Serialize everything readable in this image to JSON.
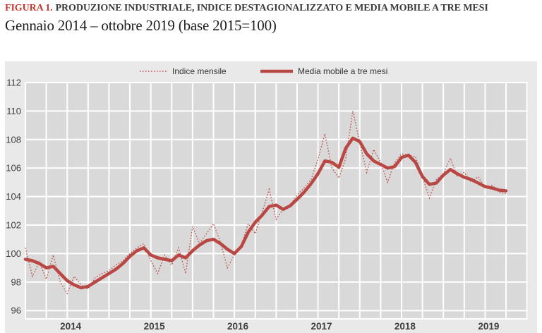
{
  "header": {
    "figure_label": "FIGURA 1.",
    "title": "PRODUZIONE INDUSTRIALE, INDICE DESTAGIONALIZZATO E MEDIA MOBILE A TRE MESI",
    "subtitle": "Gennaio 2014 – ottobre 2019 (base 2015=100)"
  },
  "colors": {
    "figure_label_red": "#c8372d",
    "title_dark": "#3a3a3a",
    "monthly_line": "#c0524d",
    "moving_avg_line": "#b94743",
    "chart_margin_bg": "#e9e9e9",
    "plot_bg": "#d9d9d9",
    "gridline": "#ffffff",
    "axis_text": "#3f3f3f"
  },
  "chart_data": {
    "type": "line",
    "title": "FIGURA 1. PRODUZIONE INDUSTRIALE, INDICE DESTAGIONALIZZATO E MEDIA MOBILE A TRE MESI",
    "subtitle": "Gennaio 2014 – ottobre 2019 (base 2015=100)",
    "xlabel": "",
    "ylabel": "",
    "ylim": [
      95.4,
      112
    ],
    "y_ticks": [
      96,
      98,
      100,
      102,
      104,
      106,
      108,
      110,
      112
    ],
    "year_labels": [
      "2014",
      "2015",
      "2016",
      "2017",
      "2018",
      "2019"
    ],
    "grid": "white gridlines on gray background; vertical lines quarterly, horizontal every 2 units",
    "legend_position": "top-center",
    "months": [
      "2014-01",
      "2014-02",
      "2014-03",
      "2014-04",
      "2014-05",
      "2014-06",
      "2014-07",
      "2014-08",
      "2014-09",
      "2014-10",
      "2014-11",
      "2014-12",
      "2015-01",
      "2015-02",
      "2015-03",
      "2015-04",
      "2015-05",
      "2015-06",
      "2015-07",
      "2015-08",
      "2015-09",
      "2015-10",
      "2015-11",
      "2015-12",
      "2016-01",
      "2016-02",
      "2016-03",
      "2016-04",
      "2016-05",
      "2016-06",
      "2016-07",
      "2016-08",
      "2016-09",
      "2016-10",
      "2016-11",
      "2016-12",
      "2017-01",
      "2017-02",
      "2017-03",
      "2017-04",
      "2017-05",
      "2017-06",
      "2017-07",
      "2017-08",
      "2017-09",
      "2017-10",
      "2017-11",
      "2017-12",
      "2018-01",
      "2018-02",
      "2018-03",
      "2018-04",
      "2018-05",
      "2018-06",
      "2018-07",
      "2018-08",
      "2018-09",
      "2018-10",
      "2018-11",
      "2018-12",
      "2019-01",
      "2019-02",
      "2019-03",
      "2019-04",
      "2019-05",
      "2019-06",
      "2019-07",
      "2019-08",
      "2019-09",
      "2019-10"
    ],
    "series": [
      {
        "name": "Indice mensile",
        "style": "dotted",
        "values": [
          100.4,
          98.4,
          99.4,
          98.2,
          99.9,
          98.0,
          97.2,
          98.4,
          97.8,
          97.5,
          98.3,
          98.6,
          98.8,
          99.2,
          99.5,
          100.0,
          100.4,
          100.7,
          99.5,
          98.6,
          99.9,
          99.2,
          100.4,
          98.6,
          101.9,
          100.7,
          101.4,
          102.1,
          100.8,
          99.0,
          99.9,
          100.6,
          102.1,
          101.4,
          102.9,
          104.5,
          102.4,
          103.1,
          103.4,
          104.1,
          104.6,
          105.2,
          106.6,
          108.4,
          106.0,
          105.3,
          106.7,
          110.0,
          107.8,
          105.7,
          107.3,
          106.4,
          105.0,
          106.4,
          107.0,
          106.9,
          106.8,
          105.4,
          103.9,
          105.2,
          105.6,
          106.7,
          105.4,
          105.7,
          105.0,
          105.4,
          104.6,
          104.8,
          104.3,
          104.2
        ]
      },
      {
        "name": "Media mobile a tre mesi",
        "style": "solid-thick",
        "values": [
          99.6,
          99.5,
          99.3,
          99.0,
          99.1,
          98.6,
          98.1,
          97.8,
          97.6,
          97.7,
          98.0,
          98.3,
          98.6,
          98.9,
          99.3,
          99.8,
          100.2,
          100.4,
          99.9,
          99.7,
          99.6,
          99.5,
          99.9,
          99.7,
          100.2,
          100.6,
          100.9,
          101.0,
          100.7,
          100.3,
          100.0,
          100.5,
          101.5,
          102.2,
          102.7,
          103.3,
          103.4,
          103.1,
          103.35,
          103.8,
          104.3,
          104.9,
          105.6,
          106.5,
          106.4,
          106.05,
          107.4,
          108.1,
          107.85,
          107.0,
          106.5,
          106.25,
          106.0,
          106.1,
          106.75,
          106.9,
          106.4,
          105.4,
          104.85,
          104.95,
          105.5,
          105.9,
          105.6,
          105.35,
          105.2,
          104.95,
          104.7,
          104.6,
          104.45,
          104.4
        ]
      }
    ]
  }
}
